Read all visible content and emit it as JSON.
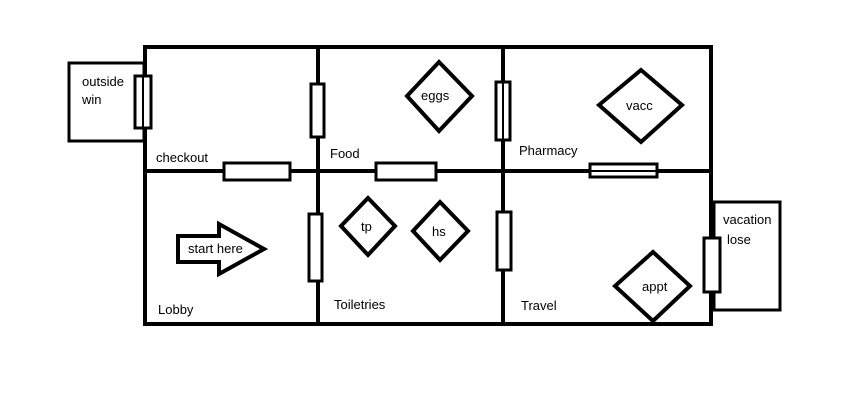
{
  "rooms": {
    "checkout": "checkout",
    "food": "Food",
    "pharmacy": "Pharmacy",
    "lobby": "Lobby",
    "toiletries": "Toiletries",
    "travel": "Travel"
  },
  "outside": {
    "win_line1": "outside",
    "win_line2": "win",
    "lose_line1": "vacation",
    "lose_line2": "lose"
  },
  "items": {
    "eggs": "eggs",
    "vacc": "vacc",
    "tp": "tp",
    "hs": "hs",
    "appt": "appt"
  },
  "start": "start here",
  "colors": {
    "stroke": "#000000",
    "background": "#ffffff"
  }
}
